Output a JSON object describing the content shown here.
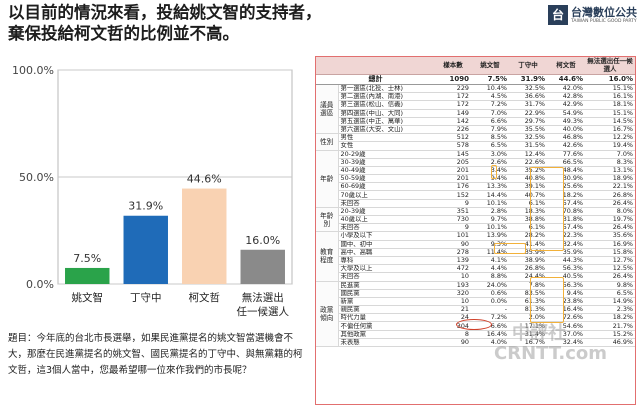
{
  "title": {
    "line1": "以目前的情況來看，投給姚文智的支持者，",
    "line2": "棄保投給柯文哲的比例並不高。"
  },
  "logo": {
    "name": "台灣數位公共",
    "sub": "TAIWAN PUBLIC GOOD PARTY"
  },
  "chart_data": {
    "type": "bar",
    "categories": [
      "姚文智",
      "丁守中",
      "柯文哲",
      "無法選出\n任一候選人"
    ],
    "values": [
      7.5,
      31.9,
      44.6,
      16.0
    ],
    "value_labels": [
      "7.5%",
      "31.9%",
      "44.6%",
      "16.0%"
    ],
    "colors": [
      "#2aa34a",
      "#1f6bb8",
      "#f9d2b2",
      "#8a8a8a"
    ],
    "ylim": [
      0,
      100
    ],
    "yticks": [
      0,
      50,
      100
    ],
    "ytick_labels": [
      "0.0%",
      "50.0%",
      "100.0%"
    ],
    "grid": true
  },
  "question": "題目：今年底的台北市長選舉，如果民進黨提名的姚文智當選機會不大，那麼在民進黨提名的姚文智、國民黨提名的丁守中、與無黨籍的柯文哲，這3個人當中，您最希望哪一位來作我們的市長呢？",
  "table": {
    "headers": [
      "樣本數",
      "姚文智",
      "丁守中",
      "柯文哲",
      "無法選出任一候選人"
    ],
    "total": {
      "label": "總計",
      "values": [
        "1090",
        "7.5%",
        "31.9%",
        "44.6%",
        "16.0%"
      ]
    },
    "groups": [
      {
        "name": "議員選區",
        "rows": [
          {
            "label": "第一選區(北投、士林)",
            "values": [
              "229",
              "10.4%",
              "32.5%",
              "42.0%",
              "15.1%"
            ]
          },
          {
            "label": "第二選區(內湖、南港)",
            "values": [
              "172",
              "4.5%",
              "36.6%",
              "42.8%",
              "16.1%"
            ]
          },
          {
            "label": "第三選區(松山、信義)",
            "values": [
              "172",
              "7.2%",
              "31.7%",
              "42.9%",
              "18.1%"
            ]
          },
          {
            "label": "第四選區(中山、大同)",
            "values": [
              "149",
              "7.0%",
              "22.9%",
              "54.9%",
              "15.1%"
            ]
          },
          {
            "label": "第五選區(中正、萬華)",
            "values": [
              "142",
              "6.6%",
              "29.7%",
              "49.3%",
              "14.5%"
            ]
          },
          {
            "label": "第六選區(大安、文山)",
            "values": [
              "226",
              "7.9%",
              "35.5%",
              "40.0%",
              "16.7%"
            ]
          }
        ]
      },
      {
        "name": "性別",
        "rows": [
          {
            "label": "男性",
            "values": [
              "512",
              "8.5%",
              "32.5%",
              "46.8%",
              "12.2%"
            ]
          },
          {
            "label": "女性",
            "values": [
              "578",
              "6.5%",
              "31.5%",
              "42.6%",
              "19.4%"
            ]
          }
        ]
      },
      {
        "name": "年齡",
        "rows": [
          {
            "label": "20-29歲",
            "values": [
              "145",
              "3.0%",
              "12.4%",
              "77.6%",
              "7.0%"
            ]
          },
          {
            "label": "30-39歲",
            "values": [
              "205",
              "2.6%",
              "22.6%",
              "66.5%",
              "8.3%"
            ]
          },
          {
            "label": "40-49歲",
            "values": [
              "201",
              "3.4%",
              "35.2%",
              "48.4%",
              "13.1%"
            ]
          },
          {
            "label": "50-59歲",
            "values": [
              "201",
              "9.4%",
              "40.8%",
              "30.9%",
              "18.9%"
            ]
          },
          {
            "label": "60-69歲",
            "values": [
              "176",
              "13.3%",
              "39.1%",
              "25.6%",
              "22.1%"
            ]
          },
          {
            "label": "70歲以上",
            "values": [
              "152",
              "14.4%",
              "40.7%",
              "18.2%",
              "26.8%"
            ]
          },
          {
            "label": "未回答",
            "values": [
              "9",
              "10.1%",
              "6.1%",
              "57.4%",
              "26.4%"
            ]
          }
        ]
      },
      {
        "name": "年齡別",
        "rows": [
          {
            "label": "20-39歲",
            "values": [
              "351",
              "2.8%",
              "18.3%",
              "70.8%",
              "8.0%"
            ]
          },
          {
            "label": "40歲以上",
            "values": [
              "730",
              "9.7%",
              "38.8%",
              "31.8%",
              "19.7%"
            ]
          },
          {
            "label": "未回答",
            "values": [
              "9",
              "10.1%",
              "6.1%",
              "57.4%",
              "26.4%"
            ]
          }
        ]
      },
      {
        "name": "教育程度",
        "rows": [
          {
            "label": "小學及以下",
            "values": [
              "101",
              "13.9%",
              "28.2%",
              "22.3%",
              "35.6%"
            ]
          },
          {
            "label": "國中、初中",
            "values": [
              "90",
              "9.3%",
              "41.4%",
              "32.4%",
              "16.9%"
            ]
          },
          {
            "label": "高中、高職",
            "values": [
              "278",
              "11.4%",
              "35.9%",
              "35.9%",
              "15.8%"
            ]
          },
          {
            "label": "專科",
            "values": [
              "139",
              "4.1%",
              "38.9%",
              "44.3%",
              "12.7%"
            ]
          },
          {
            "label": "大學及以上",
            "values": [
              "472",
              "4.4%",
              "26.8%",
              "56.3%",
              "12.5%"
            ]
          },
          {
            "label": "未回答",
            "values": [
              "10",
              "8.8%",
              "24.4%",
              "40.5%",
              "26.4%"
            ]
          }
        ]
      },
      {
        "name": "政黨傾向",
        "rows": [
          {
            "label": "民進黨",
            "values": [
              "193",
              "24.0%",
              "7.8%",
              "56.3%",
              "9.8%"
            ]
          },
          {
            "label": "國民黨",
            "values": [
              "320",
              "0.6%",
              "83.5%",
              "9.4%",
              "6.5%"
            ]
          },
          {
            "label": "新黨",
            "values": [
              "10",
              "0.0%",
              "61.3%",
              "23.8%",
              "14.9%"
            ]
          },
          {
            "label": "親民黨",
            "values": [
              "21",
              "-",
              "81.3%",
              "16.4%",
              "2.3%"
            ]
          },
          {
            "label": "時代力量",
            "values": [
              "24",
              "7.2%",
              "2.0%",
              "72.6%",
              "18.2%"
            ]
          },
          {
            "label": "不偏任何黨",
            "values": [
              "304",
              "6.6%",
              "17.1%",
              "54.6%",
              "21.7%"
            ]
          },
          {
            "label": "其他政黨",
            "values": [
              "8",
              "16.4%",
              "31.4%",
              "37.0%",
              "15.2%"
            ]
          },
          {
            "label": "未表態",
            "values": [
              "90",
              "4.0%",
              "16.7%",
              "32.4%",
              "46.9%"
            ]
          }
        ]
      }
    ]
  },
  "watermark": {
    "line1": "中評社",
    "line2": "CRNTT.com"
  }
}
